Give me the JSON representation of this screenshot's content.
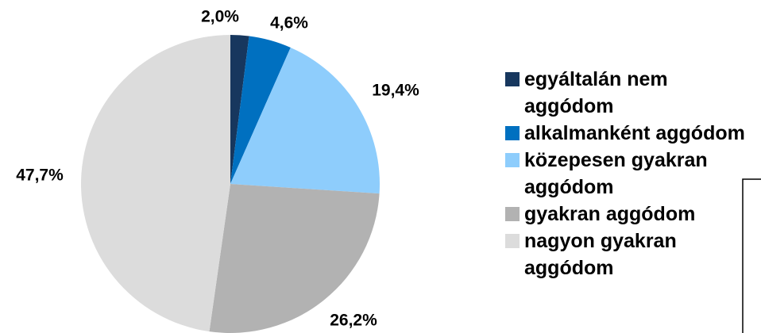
{
  "chart_data": {
    "type": "pie",
    "categories": [
      "egyáltalán nem aggódom",
      "alkalmanként aggódom",
      "közepesen gyakran aggódom",
      "gyakran aggódom",
      "nagyon gyakran aggódom"
    ],
    "values": [
      2.0,
      4.6,
      19.4,
      26.2,
      47.7
    ],
    "value_labels": [
      "2,0%",
      "4,6%",
      "19,4%",
      "26,2%",
      "47,7%"
    ],
    "colors": [
      "#17375e",
      "#0070c0",
      "#8ecdfc",
      "#b2b2b2",
      "#dcdcdc"
    ],
    "legend": "right"
  }
}
